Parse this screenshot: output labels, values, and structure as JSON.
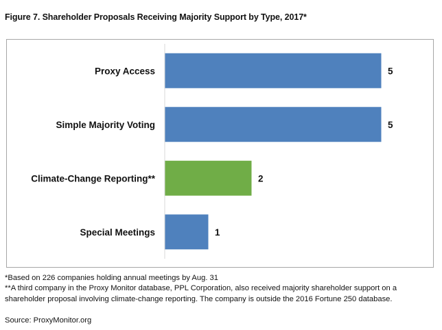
{
  "chart_data": {
    "type": "bar",
    "orientation": "horizontal",
    "title": "Figure 7. Shareholder Proposals Receiving Majority Support by Type, 2017*",
    "categories": [
      "Proxy Access",
      "Simple Majority Voting",
      "Climate-Change Reporting**",
      "Special Meetings"
    ],
    "values": [
      5,
      5,
      2,
      1
    ],
    "data_labels": [
      "5",
      "5",
      "2",
      "1"
    ],
    "colors": [
      "#4f81bd",
      "#4f81bd",
      "#70ad47",
      "#4f81bd"
    ],
    "xlabel": "",
    "ylabel": "",
    "xlim": [
      0,
      5.9
    ],
    "grid": false,
    "legend": "none"
  },
  "notes": {
    "footnote1": "*Based on 226 companies holding annual meetings by Aug. 31",
    "footnote2": "**A third company in the Proxy Monitor database,  PPL Corporation, also received majority shareholder support on a shareholder proposal involving climate-change reporting. The company is outside the 2016 Fortune 250 database.",
    "source": "Source: ProxyMonitor.org"
  }
}
